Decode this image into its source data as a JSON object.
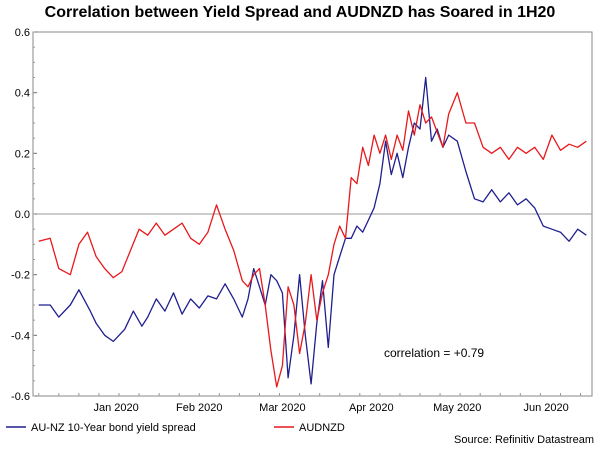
{
  "chart_data": {
    "type": "line",
    "title": "Correlation between Yield Spread and AUDNZD has Soared in 1H20",
    "xlabel": "",
    "ylabel": "",
    "ylim": [
      -0.6,
      0.6
    ],
    "yticks": [
      0.6,
      0.4,
      0.2,
      0.0,
      -0.2,
      -0.4,
      -0.6
    ],
    "ytick_labels": [
      "0.6",
      "0.4",
      "0.2",
      "0.0",
      "-0.2",
      "-0.4",
      "-0.6"
    ],
    "x_domain": [
      "2019-12-19",
      "2020-07-01"
    ],
    "xticks": [
      "2020-01-17",
      "2020-02-15",
      "2020-03-15",
      "2020-04-15",
      "2020-05-15",
      "2020-06-15"
    ],
    "xtick_labels": [
      "Jan 2020",
      "Feb 2020",
      "Mar 2020",
      "Apr 2020",
      "May 2020",
      "Jun 2020"
    ],
    "zero_line": true,
    "grid": false,
    "legend_position": "bottom-left",
    "annotation": "correlation = +0.79",
    "source": "Source: Refinitiv Datastream",
    "series": [
      {
        "name": "AU-NZ 10-Year bond yield spread",
        "color": "#1f1f8f",
        "x": [
          "2019-12-21",
          "2019-12-25",
          "2019-12-28",
          "2020-01-01",
          "2020-01-04",
          "2020-01-08",
          "2020-01-10",
          "2020-01-13",
          "2020-01-16",
          "2020-01-20",
          "2020-01-23",
          "2020-01-26",
          "2020-01-28",
          "2020-01-31",
          "2020-02-03",
          "2020-02-06",
          "2020-02-09",
          "2020-02-12",
          "2020-02-15",
          "2020-02-18",
          "2020-02-21",
          "2020-02-24",
          "2020-02-27",
          "2020-03-01",
          "2020-03-03",
          "2020-03-05",
          "2020-03-07",
          "2020-03-09",
          "2020-03-11",
          "2020-03-13",
          "2020-03-15",
          "2020-03-17",
          "2020-03-19",
          "2020-03-21",
          "2020-03-23",
          "2020-03-25",
          "2020-03-27",
          "2020-03-29",
          "2020-03-31",
          "2020-04-02",
          "2020-04-04",
          "2020-04-06",
          "2020-04-08",
          "2020-04-10",
          "2020-04-12",
          "2020-04-14",
          "2020-04-16",
          "2020-04-18",
          "2020-04-20",
          "2020-04-22",
          "2020-04-24",
          "2020-04-26",
          "2020-04-28",
          "2020-04-30",
          "2020-05-02",
          "2020-05-04",
          "2020-05-06",
          "2020-05-08",
          "2020-05-10",
          "2020-05-12",
          "2020-05-15",
          "2020-05-18",
          "2020-05-21",
          "2020-05-24",
          "2020-05-27",
          "2020-05-30",
          "2020-06-02",
          "2020-06-05",
          "2020-06-08",
          "2020-06-11",
          "2020-06-14",
          "2020-06-17",
          "2020-06-20",
          "2020-06-23",
          "2020-06-26",
          "2020-06-29"
        ],
        "values": [
          -0.3,
          -0.3,
          -0.34,
          -0.3,
          -0.25,
          -0.32,
          -0.36,
          -0.4,
          -0.42,
          -0.38,
          -0.32,
          -0.37,
          -0.34,
          -0.28,
          -0.32,
          -0.26,
          -0.33,
          -0.28,
          -0.31,
          -0.27,
          -0.28,
          -0.23,
          -0.28,
          -0.34,
          -0.28,
          -0.18,
          -0.24,
          -0.3,
          -0.2,
          -0.22,
          -0.26,
          -0.54,
          -0.4,
          -0.2,
          -0.4,
          -0.56,
          -0.36,
          -0.22,
          -0.44,
          -0.2,
          -0.14,
          -0.08,
          -0.08,
          -0.04,
          -0.06,
          -0.02,
          0.02,
          0.1,
          0.24,
          0.13,
          0.2,
          0.12,
          0.22,
          0.3,
          0.28,
          0.45,
          0.24,
          0.28,
          0.22,
          0.26,
          0.24,
          0.14,
          0.05,
          0.04,
          0.08,
          0.04,
          0.07,
          0.03,
          0.05,
          0.02,
          -0.04,
          -0.05,
          -0.06,
          -0.09,
          -0.05,
          -0.07
        ]
      },
      {
        "name": "AUDNZD",
        "color": "#e8191c",
        "x": [
          "2019-12-21",
          "2019-12-25",
          "2019-12-28",
          "2020-01-01",
          "2020-01-04",
          "2020-01-07",
          "2020-01-10",
          "2020-01-13",
          "2020-01-16",
          "2020-01-19",
          "2020-01-22",
          "2020-01-25",
          "2020-01-28",
          "2020-01-31",
          "2020-02-03",
          "2020-02-06",
          "2020-02-09",
          "2020-02-12",
          "2020-02-15",
          "2020-02-18",
          "2020-02-21",
          "2020-02-24",
          "2020-02-27",
          "2020-03-01",
          "2020-03-03",
          "2020-03-05",
          "2020-03-07",
          "2020-03-09",
          "2020-03-11",
          "2020-03-13",
          "2020-03-15",
          "2020-03-17",
          "2020-03-19",
          "2020-03-21",
          "2020-03-23",
          "2020-03-25",
          "2020-03-27",
          "2020-03-29",
          "2020-03-31",
          "2020-04-02",
          "2020-04-04",
          "2020-04-06",
          "2020-04-08",
          "2020-04-10",
          "2020-04-12",
          "2020-04-14",
          "2020-04-16",
          "2020-04-18",
          "2020-04-20",
          "2020-04-22",
          "2020-04-24",
          "2020-04-26",
          "2020-04-28",
          "2020-04-30",
          "2020-05-02",
          "2020-05-04",
          "2020-05-06",
          "2020-05-08",
          "2020-05-10",
          "2020-05-12",
          "2020-05-15",
          "2020-05-18",
          "2020-05-21",
          "2020-05-24",
          "2020-05-27",
          "2020-05-30",
          "2020-06-02",
          "2020-06-05",
          "2020-06-08",
          "2020-06-11",
          "2020-06-14",
          "2020-06-17",
          "2020-06-20",
          "2020-06-23",
          "2020-06-26",
          "2020-06-29"
        ],
        "values": [
          -0.09,
          -0.08,
          -0.18,
          -0.2,
          -0.1,
          -0.06,
          -0.14,
          -0.18,
          -0.21,
          -0.19,
          -0.12,
          -0.05,
          -0.07,
          -0.03,
          -0.07,
          -0.05,
          -0.03,
          -0.08,
          -0.1,
          -0.06,
          0.03,
          -0.05,
          -0.12,
          -0.22,
          -0.24,
          -0.2,
          -0.18,
          -0.3,
          -0.45,
          -0.57,
          -0.5,
          -0.24,
          -0.3,
          -0.46,
          -0.36,
          -0.2,
          -0.35,
          -0.26,
          -0.2,
          -0.1,
          -0.04,
          -0.08,
          0.12,
          0.1,
          0.22,
          0.16,
          0.26,
          0.2,
          0.26,
          0.18,
          0.26,
          0.21,
          0.34,
          0.26,
          0.36,
          0.3,
          0.32,
          0.27,
          0.22,
          0.33,
          0.4,
          0.3,
          0.3,
          0.22,
          0.2,
          0.22,
          0.18,
          0.22,
          0.2,
          0.22,
          0.18,
          0.26,
          0.21,
          0.23,
          0.22,
          0.24
        ]
      }
    ]
  }
}
